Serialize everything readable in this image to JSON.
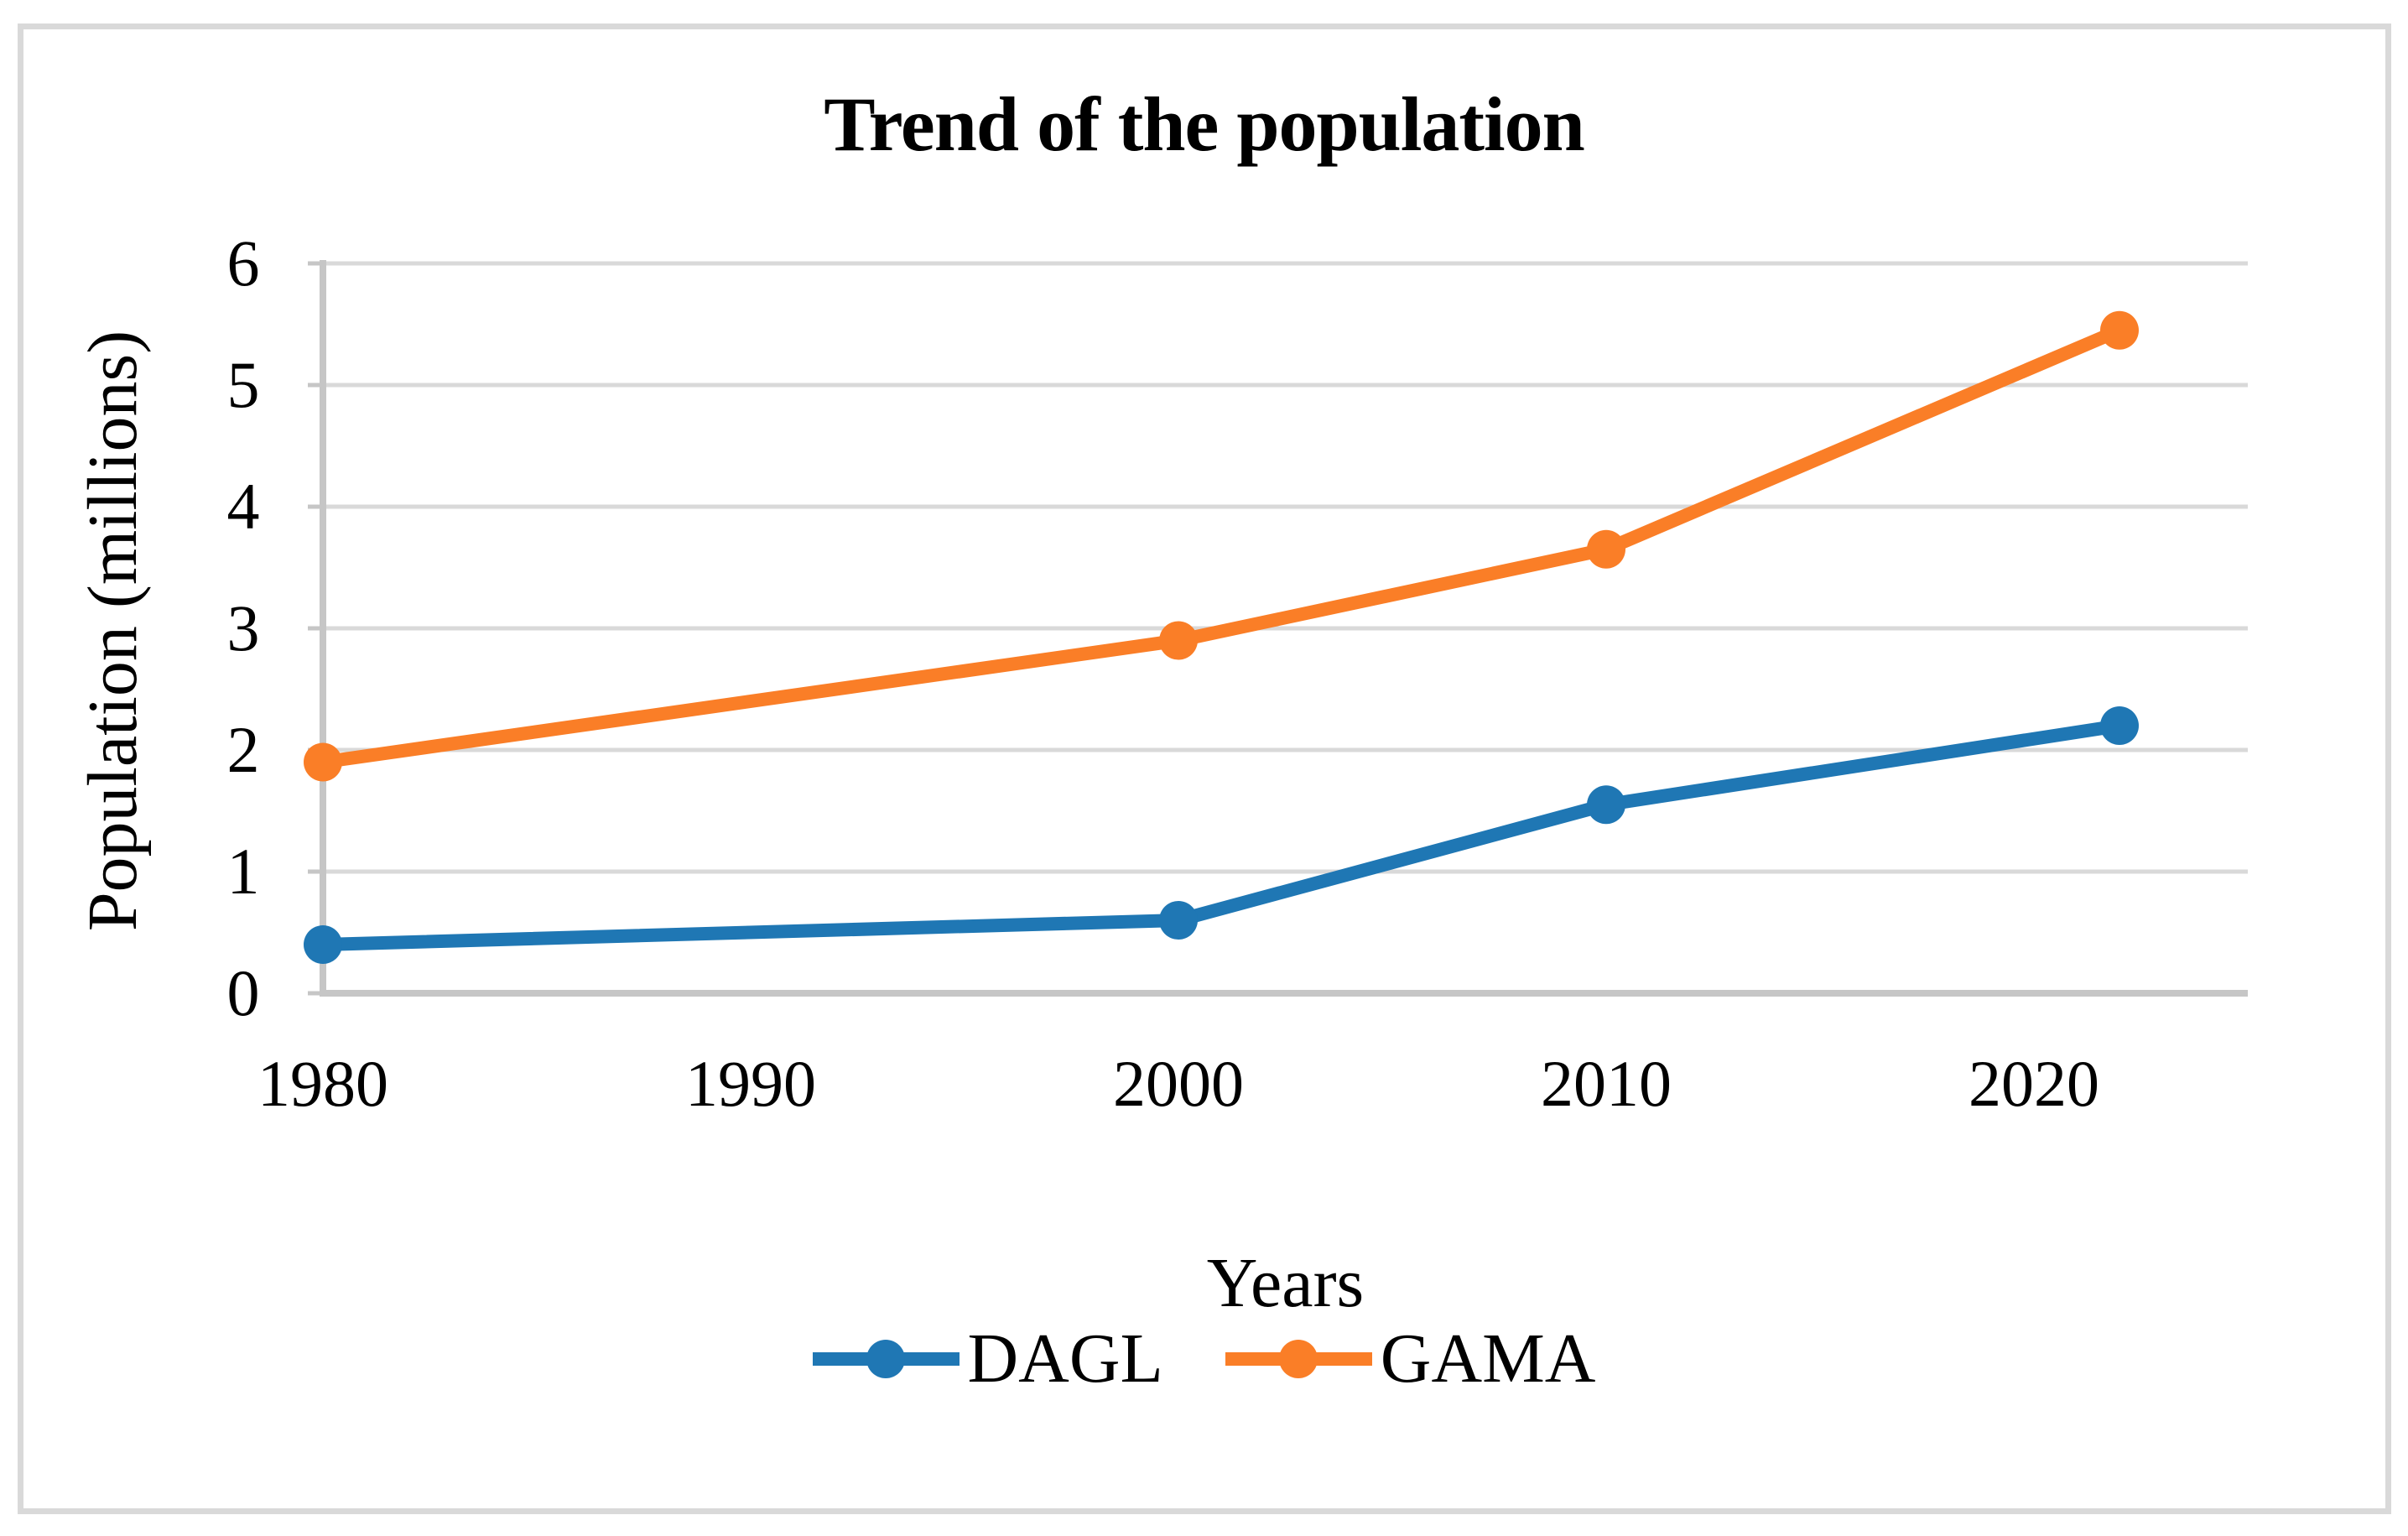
{
  "figure": {
    "title": "Trend of the population",
    "y_axis_title": "Population (millions)",
    "x_axis_title": "Years"
  },
  "chart_data": {
    "type": "line",
    "title": "Trend of the population",
    "xlabel": "Years",
    "ylabel": "Population (millions)",
    "x": [
      1980,
      2000,
      2010,
      2022
    ],
    "series": [
      {
        "name": "DAGL",
        "color": "#1F77B4",
        "values": [
          0.4,
          0.6,
          1.55,
          2.2
        ]
      },
      {
        "name": "GAMA",
        "color": "#FA7E27",
        "values": [
          1.9,
          2.9,
          3.65,
          5.45
        ]
      }
    ],
    "xlim": [
      1980,
      2025
    ],
    "ylim": [
      0,
      6
    ],
    "x_ticks": [
      1980,
      1990,
      2000,
      2010,
      2020
    ],
    "y_ticks": [
      0,
      1,
      2,
      3,
      4,
      5,
      6
    ],
    "grid": true,
    "legend_position": "bottom",
    "marker": "circle",
    "colors": {
      "gridline": "#D9D9D9",
      "axis": "#C6C6C6",
      "frame": "#D9D9D9",
      "text": "#000000",
      "background": "#FFFFFF"
    }
  }
}
